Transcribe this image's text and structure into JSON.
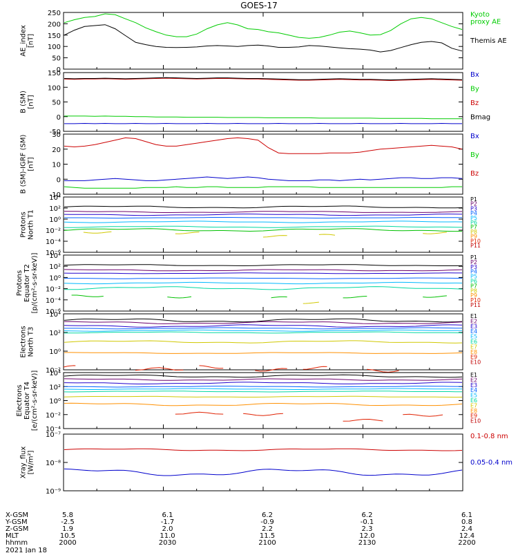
{
  "title": "GOES-17",
  "chart_data": [
    {
      "type": "line",
      "ylabel": "AE_index [nT]",
      "ylim": [
        0,
        250
      ],
      "yticks": [
        "0",
        "50",
        "100",
        "150",
        "200",
        "250"
      ],
      "series": [
        {
          "name": "Kyoto proxy AE",
          "color": "#00cc00",
          "values": [
            205,
            218,
            228,
            232,
            244,
            240,
            222,
            205,
            182,
            165,
            150,
            143,
            143,
            155,
            178,
            195,
            205,
            195,
            178,
            175,
            165,
            160,
            150,
            140,
            136,
            140,
            150,
            163,
            168,
            160,
            150,
            152,
            170,
            200,
            222,
            228,
            222,
            205,
            188,
            175
          ]
        },
        {
          "name": "Themis AE",
          "color": "#000000",
          "values": [
            150,
            172,
            188,
            192,
            196,
            178,
            148,
            118,
            108,
            100,
            96,
            95,
            96,
            98,
            102,
            104,
            102,
            100,
            104,
            106,
            102,
            96,
            96,
            98,
            104,
            102,
            98,
            94,
            90,
            88,
            84,
            76,
            82,
            95,
            108,
            118,
            122,
            116,
            92,
            80
          ]
        }
      ]
    },
    {
      "type": "line",
      "ylabel": "B (SM) [nT]",
      "ylim": [
        -50,
        150
      ],
      "yticks": [
        "-50",
        "0",
        "50",
        "100",
        "150"
      ],
      "series": [
        {
          "name": "Bx",
          "color": "#0000cc",
          "values": [
            -24,
            -24,
            -23,
            -24,
            -23,
            -24,
            -24,
            -23,
            -24,
            -24,
            -23,
            -24,
            -24,
            -24,
            -23,
            -24,
            -24,
            -23,
            -24,
            -24,
            -24,
            -23,
            -24,
            -24,
            -24,
            -23,
            -24,
            -24,
            -24,
            -23,
            -24,
            -24,
            -24,
            -23,
            -24,
            -24,
            -24,
            -23,
            -24,
            -24
          ]
        },
        {
          "name": "By",
          "color": "#00cc00",
          "values": [
            2,
            2,
            2,
            1,
            2,
            1,
            1,
            0,
            0,
            -1,
            -1,
            -1,
            -2,
            -2,
            -2,
            -2,
            -3,
            -3,
            -3,
            -3,
            -4,
            -4,
            -4,
            -4,
            -4,
            -5,
            -5,
            -5,
            -5,
            -5,
            -5,
            -6,
            -6,
            -6,
            -6,
            -6,
            -7,
            -7,
            -7,
            -7
          ]
        },
        {
          "name": "Bz",
          "color": "#cc0000",
          "values": [
            128,
            127,
            128,
            128,
            129,
            128,
            127,
            128,
            129,
            130,
            131,
            130,
            129,
            128,
            129,
            130,
            130,
            129,
            128,
            128,
            127,
            126,
            125,
            124,
            124,
            125,
            126,
            127,
            126,
            125,
            125,
            124,
            123,
            124,
            125,
            126,
            127,
            126,
            125,
            124
          ]
        },
        {
          "name": "Bmag",
          "color": "#000000",
          "values": [
            130,
            129,
            130,
            130,
            131,
            130,
            129,
            130,
            131,
            132,
            133,
            132,
            131,
            130,
            131,
            132,
            132,
            131,
            130,
            130,
            129,
            128,
            127,
            126,
            126,
            127,
            128,
            129,
            128,
            127,
            127,
            126,
            125,
            126,
            127,
            128,
            129,
            128,
            127,
            126
          ]
        }
      ]
    },
    {
      "type": "line",
      "ylabel": "B (SM)-IGRF (SM) [nT]",
      "ylim": [
        -10,
        30
      ],
      "yticks": [
        "-10",
        "0",
        "10",
        "20",
        "30"
      ],
      "series": [
        {
          "name": "Bx",
          "color": "#0000cc",
          "values": [
            -1,
            -1,
            -1,
            -0.5,
            0,
            0.5,
            0,
            -0.5,
            -1,
            -1,
            -0.5,
            0,
            0.5,
            1,
            1.5,
            1,
            0.5,
            1,
            1.5,
            1,
            0,
            -0.5,
            -1,
            -1,
            -1,
            -0.5,
            -0.5,
            -1,
            -0.5,
            0,
            -0.5,
            0,
            0.5,
            1,
            1,
            0.5,
            0.5,
            1,
            1,
            0.5
          ]
        },
        {
          "name": "By",
          "color": "#00cc00",
          "values": [
            -5,
            -5.5,
            -6,
            -6,
            -6,
            -6,
            -6,
            -6,
            -5.5,
            -5.5,
            -5.5,
            -5,
            -5.5,
            -5.5,
            -5,
            -5,
            -5.5,
            -5.5,
            -5.5,
            -5.5,
            -5,
            -5,
            -5,
            -5,
            -5,
            -5.5,
            -5.5,
            -5.5,
            -5.5,
            -5.5,
            -5.5,
            -5.5,
            -5.5,
            -5.5,
            -5.5,
            -5.5,
            -5.5,
            -5.5,
            -5,
            -5
          ]
        },
        {
          "name": "Bz",
          "color": "#cc0000",
          "values": [
            22,
            21.5,
            22,
            23,
            24.5,
            26,
            27.5,
            27,
            25,
            23,
            22,
            22,
            23,
            24,
            25,
            26,
            27,
            27.5,
            27,
            26,
            21,
            17.5,
            17,
            17,
            17,
            17,
            17.5,
            17.5,
            17.5,
            18,
            19,
            20,
            20.5,
            21,
            21.5,
            22,
            22.5,
            22,
            21.5,
            20
          ]
        }
      ]
    }
  ],
  "panels": [
    {
      "ylabel": "AE_index\n[nT]",
      "legend": [
        "Kyoto\nproxy AE",
        "Themis AE"
      ]
    },
    {
      "ylabel": "B (SM)\n[nT]",
      "legend": [
        "Bx",
        "By",
        "Bz",
        "Bmag"
      ]
    },
    {
      "ylabel": "B (SM)-IGRF (SM)\n[nT]",
      "legend": [
        "Bx",
        "By",
        "Bz"
      ]
    },
    {
      "ylabel": "Protons\nNorth T1",
      "yticks": [
        "10⁴",
        "10²",
        "10⁰",
        "10⁻²",
        "10⁻⁴",
        "10⁻⁶"
      ],
      "legend": [
        "P1",
        "P2",
        "P3",
        "P4",
        "P5",
        "P6",
        "P7",
        "P8",
        "P9",
        "P10",
        "P11"
      ]
    },
    {
      "ylabel": "Protons\nEquator T2\n[p/(cm²-s-sr-keV)]",
      "yticks": [
        "10⁴",
        "10²",
        "10⁰",
        "10⁻²",
        "10⁻⁴",
        "10⁻⁶"
      ],
      "legend": [
        "P1",
        "P2",
        "P3",
        "P4",
        "P5",
        "P6",
        "P7",
        "P8",
        "P9",
        "P10",
        "P11"
      ]
    },
    {
      "ylabel": "Electrons\nNorth T3",
      "yticks": [
        "10⁴",
        "10²",
        "10⁰",
        "10⁻²"
      ],
      "legend": [
        "E1",
        "E2",
        "E3",
        "E4",
        "E5",
        "E6",
        "E7",
        "E8",
        "E9",
        "E10"
      ]
    },
    {
      "ylabel": "Electrons\nEquator T4\n[e/(cm²-s-sr-keV)]",
      "yticks": [
        "10⁴",
        "10²",
        "10⁰",
        "10⁻²",
        "10⁻⁴"
      ],
      "legend": [
        "E1",
        "E2",
        "E3",
        "E4",
        "E5",
        "E6",
        "E7",
        "E8",
        "E9",
        "E10"
      ]
    },
    {
      "ylabel": "Xray_flux\n[W/m²]",
      "yticks": [
        "10⁻⁷",
        "10⁻⁸",
        "10⁻⁹"
      ],
      "legend": [
        "0.1-0.8 nm",
        "0.05-0.4 nm"
      ]
    }
  ],
  "xaxis": {
    "row_labels": [
      "X-GSM",
      "Y-GSM",
      "Z-GSM",
      "MLT",
      "hhmm",
      "2021 Jan 18"
    ],
    "columns": [
      {
        "x_gsm": "5.8",
        "y_gsm": "-2.5",
        "z_gsm": "1.9",
        "mlt": "10.5",
        "hhmm": "2000"
      },
      {
        "x_gsm": "6.1",
        "y_gsm": "-1.7",
        "z_gsm": "2.0",
        "mlt": "11.0",
        "hhmm": "2030"
      },
      {
        "x_gsm": "6.2",
        "y_gsm": "-0.9",
        "z_gsm": "2.2",
        "mlt": "11.5",
        "hhmm": "2100"
      },
      {
        "x_gsm": "6.2",
        "y_gsm": "-0.1",
        "z_gsm": "2.3",
        "mlt": "12.0",
        "hhmm": "2130"
      },
      {
        "x_gsm": "6.1",
        "y_gsm": "0.8",
        "z_gsm": "2.4",
        "mlt": "12.4",
        "hhmm": "2200"
      }
    ]
  },
  "colors": {
    "p": [
      "#000000",
      "#6b006b",
      "#2000cc",
      "#0060ff",
      "#00b8ff",
      "#00d8a0",
      "#00c000",
      "#d0c800",
      "#ff9000",
      "#e02000",
      "#c00000"
    ],
    "e": [
      "#000000",
      "#6b006b",
      "#2000cc",
      "#0060ff",
      "#00b8ff",
      "#00d8a0",
      "#d0c800",
      "#ff9000",
      "#e02000",
      "#c00000"
    ],
    "xray": [
      "#cc0000",
      "#0000cc"
    ]
  },
  "flux": {
    "protons_t1": [
      {
        "base": 2.2,
        "amp": 0.15
      },
      {
        "base": 1.3,
        "amp": 0.1
      },
      {
        "base": 0.8,
        "amp": 0.1
      },
      {
        "base": 0.25,
        "amp": 0.05
      },
      {
        "base": -0.5,
        "amp": 0.1
      },
      {
        "base": -1.4,
        "amp": 0.1
      },
      {
        "base": -1.95,
        "amp": 0.2
      },
      {
        "segments": [
          [
            0.05,
            0.12,
            -2.4
          ],
          [
            0.28,
            0.34,
            -2.5
          ],
          [
            0.5,
            0.56,
            -3.1
          ],
          [
            0.64,
            0.68,
            -2.9
          ],
          [
            0.9,
            0.96,
            -2.5
          ]
        ]
      }
    ],
    "protons_t2": [
      {
        "base": 2.2,
        "amp": 0.1
      },
      {
        "base": 1.3,
        "amp": 0.1
      },
      {
        "base": 0.75,
        "amp": 0.05
      },
      {
        "base": -0.15,
        "amp": 0.05
      },
      {
        "base": -1.0,
        "amp": 0.1
      },
      {
        "base": -1.9,
        "amp": 0.2
      },
      {
        "segments": [
          [
            0.02,
            0.1,
            -3.3
          ],
          [
            0.26,
            0.32,
            -3.5
          ],
          [
            0.52,
            0.56,
            -3.6
          ],
          [
            0.7,
            0.76,
            -3.5
          ],
          [
            0.9,
            0.96,
            -3.4
          ]
        ]
      },
      {
        "segments": [
          [
            0.6,
            0.64,
            -4.5
          ]
        ]
      }
    ],
    "electrons_t3": [
      {
        "base": 3.3,
        "amp": 0.15
      },
      {
        "base": 3.05,
        "amp": 0.1
      },
      {
        "base": 2.7,
        "amp": 0.1
      },
      {
        "base": 2.45,
        "amp": 0.05
      },
      {
        "base": 2.2,
        "amp": 0.05
      },
      {
        "base": 2.0,
        "amp": 0.05
      },
      {
        "base": 1.0,
        "amp": 0.1
      },
      {
        "base": -0.2,
        "amp": 0.05
      },
      {
        "segments": [
          [
            0.0,
            0.03,
            -1.7
          ],
          [
            0.18,
            0.3,
            -1.9
          ],
          [
            0.34,
            0.4,
            -1.7
          ],
          [
            0.48,
            0.56,
            -2.0
          ],
          [
            0.6,
            0.66,
            -1.8
          ],
          [
            0.76,
            0.84,
            -2.1
          ]
        ]
      }
    ],
    "electrons_t4": [
      {
        "base": 3.5,
        "amp": 0.15
      },
      {
        "base": 3.0,
        "amp": 0.1
      },
      {
        "base": 2.5,
        "amp": 0.1
      },
      {
        "base": 2.0,
        "amp": 0.05
      },
      {
        "base": 1.65,
        "amp": 0.05
      },
      {
        "base": 1.3,
        "amp": 0.05
      },
      {
        "base": 0.55,
        "amp": 0.05
      },
      {
        "base": -0.55,
        "amp": 0.15
      },
      {
        "segments": [
          [
            0.28,
            0.4,
            -1.8
          ],
          [
            0.45,
            0.55,
            -2.0
          ],
          [
            0.7,
            0.8,
            -2.8
          ],
          [
            0.85,
            0.95,
            -2.1
          ]
        ]
      }
    ],
    "xray": [
      {
        "base": -7.55,
        "amp": 0.03
      },
      {
        "base": -8.35,
        "amp": 0.1
      }
    ]
  }
}
